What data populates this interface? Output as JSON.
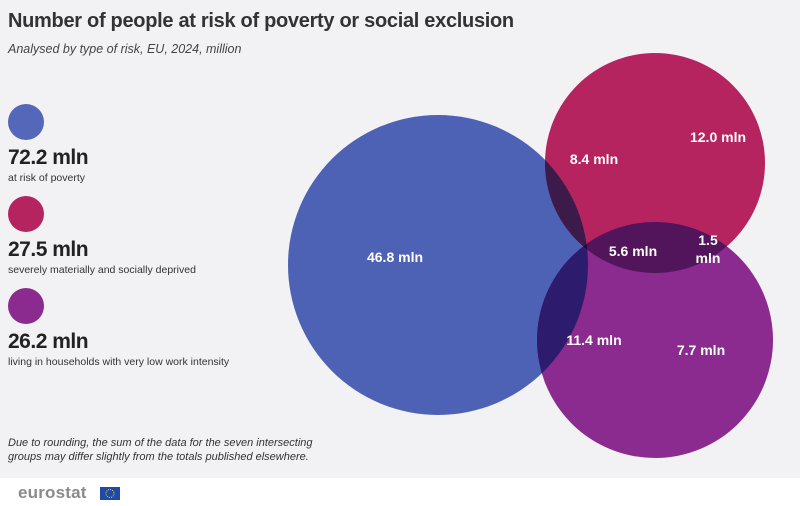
{
  "title": "Number of people at risk of poverty or social exclusion",
  "subtitle": "Analysed by type of risk, EU, 2024, million",
  "colors": {
    "poverty": "#4e62b5",
    "deprived": "#b5245e",
    "low_work": "#8b2a8f",
    "poverty_deprived": "#3c1a4a",
    "deprived_low_work": "#52145a",
    "poverty_low_work": "#2d1c6e",
    "all_three": "#230b2e"
  },
  "legend": [
    {
      "value": "72.2 mln",
      "label": "at risk of poverty",
      "color": "#5467b8"
    },
    {
      "value": "27.5 mln",
      "label": "severely materially and socially deprived",
      "color": "#b5245e"
    },
    {
      "value": "26.2 mln",
      "label": "living in households with very low work intensity",
      "color": "#8b2a8f"
    }
  ],
  "venn": {
    "poverty_only": "46.8 mln",
    "deprived_only": "12.0 mln",
    "low_work_only": "7.7 mln",
    "poverty_and_deprived": "8.4 mln",
    "poverty_and_low_work": "11.4 mln",
    "deprived_and_low_work_line1": "1.5",
    "deprived_and_low_work_line2": "mln",
    "all_three": "5.6 mln"
  },
  "footnote": "Due to rounding, the sum of the data for the seven intersecting groups may differ slightly from the totals published elsewhere.",
  "logo": "eurostat"
}
